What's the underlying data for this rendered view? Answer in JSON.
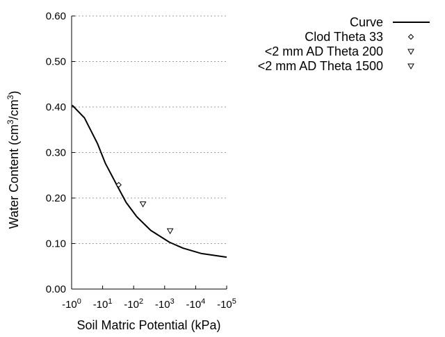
{
  "chart_data": {
    "type": "line",
    "xlabel": "Soil Matric Potential (kPa)",
    "ylabel_parts": [
      "Water Content (cm",
      "3",
      "/cm",
      "3",
      ")"
    ],
    "x_scale": "log",
    "xlim": [
      -1,
      -100000
    ],
    "ylim": [
      0,
      0.6
    ],
    "x_ticks": [
      {
        "base": "-10",
        "exp": "0",
        "value": -1
      },
      {
        "base": "-10",
        "exp": "1",
        "value": -10
      },
      {
        "base": "-10",
        "exp": "2",
        "value": -100
      },
      {
        "base": "-10",
        "exp": "3",
        "value": -1000
      },
      {
        "base": "-10",
        "exp": "4",
        "value": -10000
      },
      {
        "base": "-10",
        "exp": "5",
        "value": -100000
      }
    ],
    "y_ticks": [
      "0.00",
      "0.10",
      "0.20",
      "0.30",
      "0.40",
      "0.50",
      "0.60"
    ],
    "y_tick_values": [
      0,
      0.1,
      0.2,
      0.3,
      0.4,
      0.5,
      0.6
    ],
    "grid": "horizontal dotted",
    "legend_position": "top-right, outside plot",
    "series": [
      {
        "name": "Curve",
        "kind": "line",
        "color": "#000000",
        "x": [
          -1.05,
          -2.6,
          -6.8,
          -12.3,
          -31.6,
          -57.5,
          -126,
          -355,
          -1413,
          -3890,
          -15500,
          -100000
        ],
        "y": [
          0.404,
          0.376,
          0.32,
          0.276,
          0.223,
          0.19,
          0.159,
          0.129,
          0.103,
          0.09,
          0.078,
          0.07
        ]
      },
      {
        "name": "Clod Theta 33",
        "kind": "marker",
        "marker": "diamond",
        "x": [
          -33
        ],
        "y": [
          0.229
        ]
      },
      {
        "name": "<2 mm AD Theta 200",
        "kind": "marker",
        "marker": "triangle-down",
        "x": [
          -200
        ],
        "y": [
          0.187
        ]
      },
      {
        "name": "<2 mm AD Theta 1500",
        "kind": "marker",
        "marker": "triangle-down",
        "x": [
          -1500
        ],
        "y": [
          0.128
        ]
      }
    ]
  }
}
